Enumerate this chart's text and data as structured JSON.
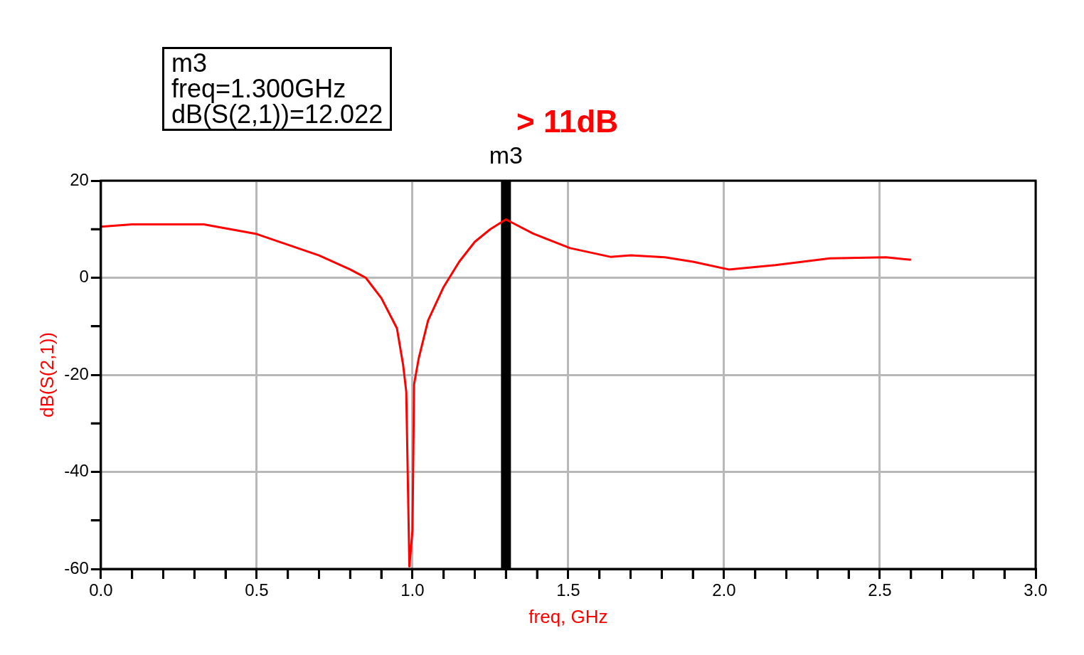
{
  "chart_data": {
    "type": "line",
    "xlabel": "freq, GHz",
    "ylabel": "dB(S(2,1))",
    "annotations": [
      "m3",
      "freq=1.300GHz",
      "dB(S(2,1))=12.022",
      "> 11dB"
    ],
    "x": [
      0,
      0.1,
      0.33,
      0.5,
      0.6,
      0.7,
      0.8,
      0.85,
      0.9,
      0.95,
      0.97,
      0.98,
      0.99,
      1.0,
      1.005,
      1.02,
      1.05,
      1.1,
      1.15,
      1.2,
      1.25,
      1.3,
      1.315,
      1.387,
      1.506,
      1.635,
      1.7,
      1.81,
      1.9,
      2.015,
      2.165,
      2.34,
      2.52,
      2.6
    ],
    "series": [
      {
        "color": "#ff0000",
        "values": [
          10.5,
          11,
          11,
          9.0,
          6.8,
          4.6,
          1.7,
          0,
          -4.2,
          -10.4,
          -18,
          -23.5,
          -59.5,
          -52,
          -22,
          -16.6,
          -8.8,
          -1.9,
          3.3,
          7.4,
          10,
          12.0,
          11.5,
          9.1,
          6.1,
          4.3,
          4.6,
          4.2,
          3.3,
          1.7,
          2.6,
          4.0,
          4.2,
          3.7
        ]
      }
    ],
    "xlim": [
      0,
      3
    ],
    "xticks": [
      {
        "value": 0,
        "label": "0.0"
      },
      {
        "value": 0.1,
        "label": null
      },
      {
        "value": 0.2,
        "label": null
      },
      {
        "value": 0.3,
        "label": null
      },
      {
        "value": 0.4,
        "label": null
      },
      {
        "value": 0.5,
        "label": "0.5"
      },
      {
        "value": 0.6,
        "label": null
      },
      {
        "value": 0.7,
        "label": null
      },
      {
        "value": 0.8,
        "label": null
      },
      {
        "value": 0.9,
        "label": null
      },
      {
        "value": 1,
        "label": "1.0"
      },
      {
        "value": 1.1,
        "label": null
      },
      {
        "value": 1.2,
        "label": null
      },
      {
        "value": 1.3,
        "label": null
      },
      {
        "value": 1.4,
        "label": null
      },
      {
        "value": 1.5,
        "label": "1.5"
      },
      {
        "value": 1.6,
        "label": null
      },
      {
        "value": 1.7,
        "label": null
      },
      {
        "value": 1.8,
        "label": null
      },
      {
        "value": 1.9,
        "label": null
      },
      {
        "value": 2,
        "label": "2.0"
      },
      {
        "value": 2.1,
        "label": null
      },
      {
        "value": 2.2,
        "label": null
      },
      {
        "value": 2.3,
        "label": null
      },
      {
        "value": 2.4,
        "label": null
      },
      {
        "value": 2.5,
        "label": "2.5"
      },
      {
        "value": 2.6,
        "label": null
      },
      {
        "value": 2.7,
        "label": null
      },
      {
        "value": 2.8,
        "label": null
      },
      {
        "value": 2.9,
        "label": null
      },
      {
        "value": 3,
        "label": "3.0"
      }
    ],
    "ylim": [
      -60,
      20
    ],
    "yticks": [
      -60,
      {
        "value": -50,
        "label": null
      },
      -40,
      {
        "value": -30,
        "label": null
      },
      -20,
      {
        "value": -10,
        "label": null
      },
      0,
      {
        "value": 10,
        "label": null
      },
      20
    ],
    "grid": true,
    "marker": "none",
    "line_style": "solid",
    "legend": false,
    "ref_lines": [
      {
        "axis": "x",
        "value": 1.3,
        "label": "m3",
        "color": "#000000"
      }
    ]
  }
}
